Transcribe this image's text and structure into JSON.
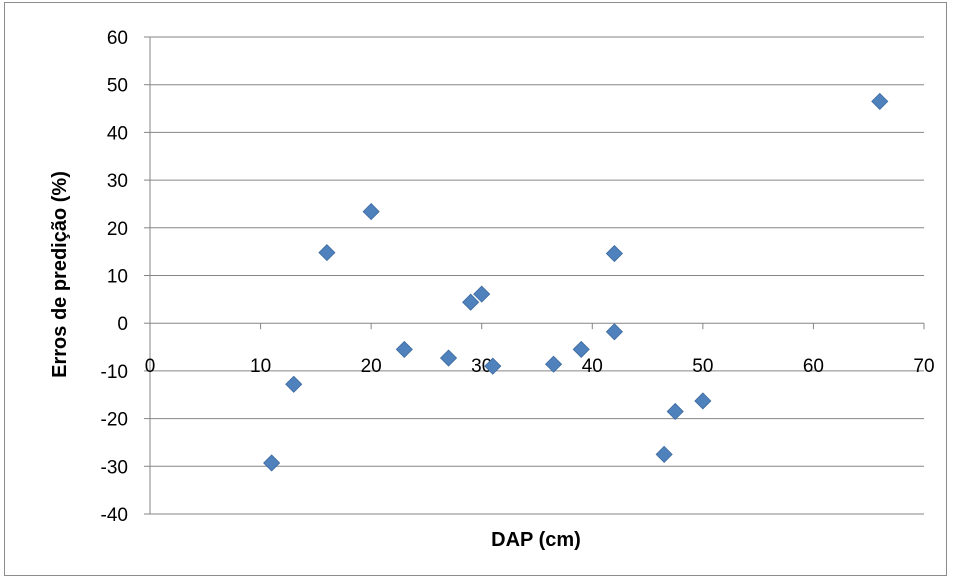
{
  "chart_data": {
    "type": "scatter",
    "title": "",
    "xlabel": "DAP (cm)",
    "ylabel": "Erros de predição (%)",
    "xlim": [
      0,
      70
    ],
    "ylim": [
      -40,
      60
    ],
    "xticks": [
      0,
      10,
      20,
      30,
      40,
      50,
      60,
      70
    ],
    "yticks": [
      -40,
      -30,
      -20,
      -10,
      0,
      10,
      20,
      30,
      40,
      50,
      60
    ],
    "grid": "horizontal",
    "legend": "none",
    "marker": "diamond",
    "color": "#4f81bd",
    "series": [
      {
        "x": [
          11,
          13,
          16,
          20,
          23,
          27,
          29,
          30,
          31,
          36.5,
          39,
          42,
          42,
          46.5,
          47.5,
          50,
          66
        ],
        "y": [
          -29.3,
          -12.8,
          14.8,
          23.4,
          -5.5,
          -7.3,
          4.4,
          6.1,
          -9.0,
          -8.6,
          -5.5,
          14.6,
          -1.8,
          -27.5,
          -18.5,
          -16.3,
          46.5
        ]
      }
    ]
  }
}
